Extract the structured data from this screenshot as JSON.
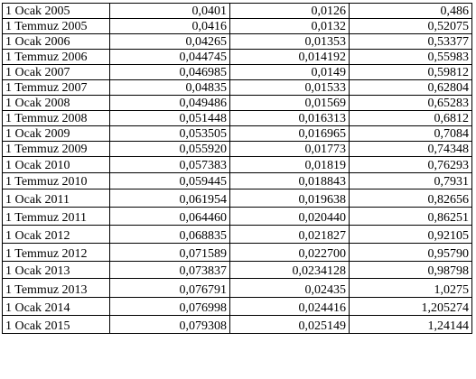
{
  "table": {
    "rows": [
      {
        "date": "1 Ocak 2005",
        "v1": "0,0401",
        "v2": "0,0126",
        "v3": "0,486"
      },
      {
        "date": "1 Temmuz 2005",
        "v1": "0,0416",
        "v2": "0,0132",
        "v3": "0,52075"
      },
      {
        "date": "1 Ocak 2006",
        "v1": "0,04265",
        "v2": "0,01353",
        "v3": "0,53377"
      },
      {
        "date": "1 Temmuz 2006",
        "v1": "0,044745",
        "v2": "0,014192",
        "v3": "0,55983"
      },
      {
        "date": "1 Ocak 2007",
        "v1": "0,046985",
        "v2": "0,0149",
        "v3": "0,59812"
      },
      {
        "date": "1 Temmuz 2007",
        "v1": "0,04835",
        "v2": "0,01533",
        "v3": "0,62804"
      },
      {
        "date": "1 Ocak 2008",
        "v1": "0,049486",
        "v2": "0,01569",
        "v3": "0,65283"
      },
      {
        "date": "1 Temmuz 2008",
        "v1": "0,051448",
        "v2": "0,016313",
        "v3": "0,6812"
      },
      {
        "date": "1 Ocak 2009",
        "v1": "0,053505",
        "v2": "0,016965",
        "v3": "0,7084"
      },
      {
        "date": "1 Temmuz 2009",
        "v1": "0,055920",
        "v2": "0,01773",
        "v3": "0,74348"
      },
      {
        "date": "1 Ocak 2010",
        "v1": "0,057383",
        "v2": "0,01819",
        "v3": "0,76293"
      },
      {
        "date": "1 Temmuz 2010",
        "v1": "0,059445",
        "v2": "0,018843",
        "v3": "0,7931"
      },
      {
        "date": "1 Ocak 2011",
        "v1": "0,061954",
        "v2": "0,019638",
        "v3": "0,82656"
      },
      {
        "date": "1 Temmuz 2011",
        "v1": "0,064460",
        "v2": "0,020440",
        "v3": "0,86251"
      },
      {
        "date": "1 Ocak 2012",
        "v1": "0,068835",
        "v2": "0,021827",
        "v3": "0,92105"
      },
      {
        "date": "1 Temmuz 2012",
        "v1": "0,071589",
        "v2": "0,022700",
        "v3": "0,95790"
      },
      {
        "date": "1 Ocak 2013",
        "v1": "0,073837",
        "v2": "0,0234128",
        "v3": "0,98798"
      },
      {
        "date": "1 Temmuz 2013",
        "v1": "0,076791",
        "v2": "0,02435",
        "v3": "1,0275"
      },
      {
        "date": "1 Ocak 2014",
        "v1": "0,076998",
        "v2": "0,024416",
        "v3": "1,205274"
      },
      {
        "date": "1 Ocak 2015",
        "v1": "0,079308",
        "v2": "0,025149",
        "v3": "1,24144"
      }
    ]
  }
}
